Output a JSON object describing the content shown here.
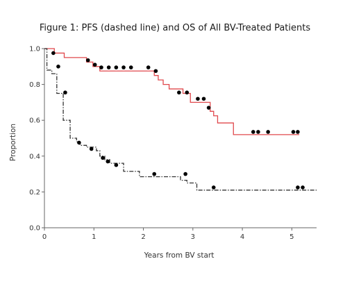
{
  "chart_data": {
    "type": "line",
    "title": "Figure 1: PFS (dashed line) and OS of All BV-Treated Patients",
    "xlabel": "Years from BV start",
    "ylabel": "Proportion",
    "xlim": [
      0,
      5.5
    ],
    "ylim": [
      0,
      1.0
    ],
    "x_ticks": [
      0,
      1,
      2,
      3,
      4,
      5
    ],
    "x_tick_labels": [
      "0",
      "1",
      "2",
      "3",
      "4",
      "5"
    ],
    "y_ticks": [
      0,
      0.2,
      0.4,
      0.6,
      0.8,
      1.0
    ],
    "y_tick_labels": [
      "0.0",
      "0.2",
      "0.4",
      "0.6",
      "0.8",
      "1.0"
    ],
    "grid": false,
    "legend": "none",
    "series": [
      {
        "line_style": "solid",
        "color": "#e0484c",
        "steps": [
          [
            0,
            1.0
          ],
          [
            0.2,
            0.975
          ],
          [
            0.4,
            0.95
          ],
          [
            0.85,
            0.925
          ],
          [
            0.98,
            0.9
          ],
          [
            1.12,
            0.875
          ],
          [
            2.22,
            0.85
          ],
          [
            2.3,
            0.825
          ],
          [
            2.4,
            0.8
          ],
          [
            2.52,
            0.775
          ],
          [
            2.8,
            0.75
          ],
          [
            2.95,
            0.7
          ],
          [
            3.35,
            0.65
          ],
          [
            3.42,
            0.625
          ],
          [
            3.5,
            0.585
          ],
          [
            3.82,
            0.52
          ],
          [
            5.15,
            0.52
          ]
        ],
        "censored": [
          [
            0.88,
            0.935
          ],
          [
            1.02,
            0.91
          ],
          [
            1.15,
            0.895
          ],
          [
            1.3,
            0.895
          ],
          [
            1.45,
            0.895
          ],
          [
            1.6,
            0.895
          ],
          [
            1.75,
            0.895
          ],
          [
            2.1,
            0.895
          ],
          [
            2.25,
            0.875
          ],
          [
            2.72,
            0.755
          ],
          [
            2.88,
            0.755
          ],
          [
            3.1,
            0.72
          ],
          [
            3.22,
            0.72
          ],
          [
            3.32,
            0.67
          ],
          [
            4.22,
            0.535
          ],
          [
            4.32,
            0.535
          ],
          [
            4.52,
            0.535
          ],
          [
            5.03,
            0.535
          ],
          [
            5.12,
            0.535
          ]
        ]
      },
      {
        "line_style": "dashdot",
        "color": "#333333",
        "steps": [
          [
            0,
            1.0
          ],
          [
            0.05,
            0.88
          ],
          [
            0.15,
            0.86
          ],
          [
            0.25,
            0.75
          ],
          [
            0.38,
            0.6
          ],
          [
            0.52,
            0.5
          ],
          [
            0.65,
            0.48
          ],
          [
            0.72,
            0.46
          ],
          [
            0.85,
            0.45
          ],
          [
            1.05,
            0.43
          ],
          [
            1.12,
            0.4
          ],
          [
            1.22,
            0.38
          ],
          [
            1.32,
            0.36
          ],
          [
            1.6,
            0.315
          ],
          [
            1.92,
            0.285
          ],
          [
            2.75,
            0.265
          ],
          [
            2.88,
            0.25
          ],
          [
            3.08,
            0.21
          ],
          [
            5.5,
            0.21
          ]
        ],
        "censored": [
          [
            0.18,
            0.975
          ],
          [
            0.28,
            0.9
          ],
          [
            0.42,
            0.755
          ],
          [
            0.7,
            0.475
          ],
          [
            0.95,
            0.44
          ],
          [
            1.18,
            0.39
          ],
          [
            1.28,
            0.37
          ],
          [
            1.45,
            0.35
          ],
          [
            2.22,
            0.3
          ],
          [
            2.85,
            0.3
          ],
          [
            3.42,
            0.225
          ],
          [
            5.12,
            0.225
          ],
          [
            5.22,
            0.225
          ]
        ]
      }
    ]
  }
}
